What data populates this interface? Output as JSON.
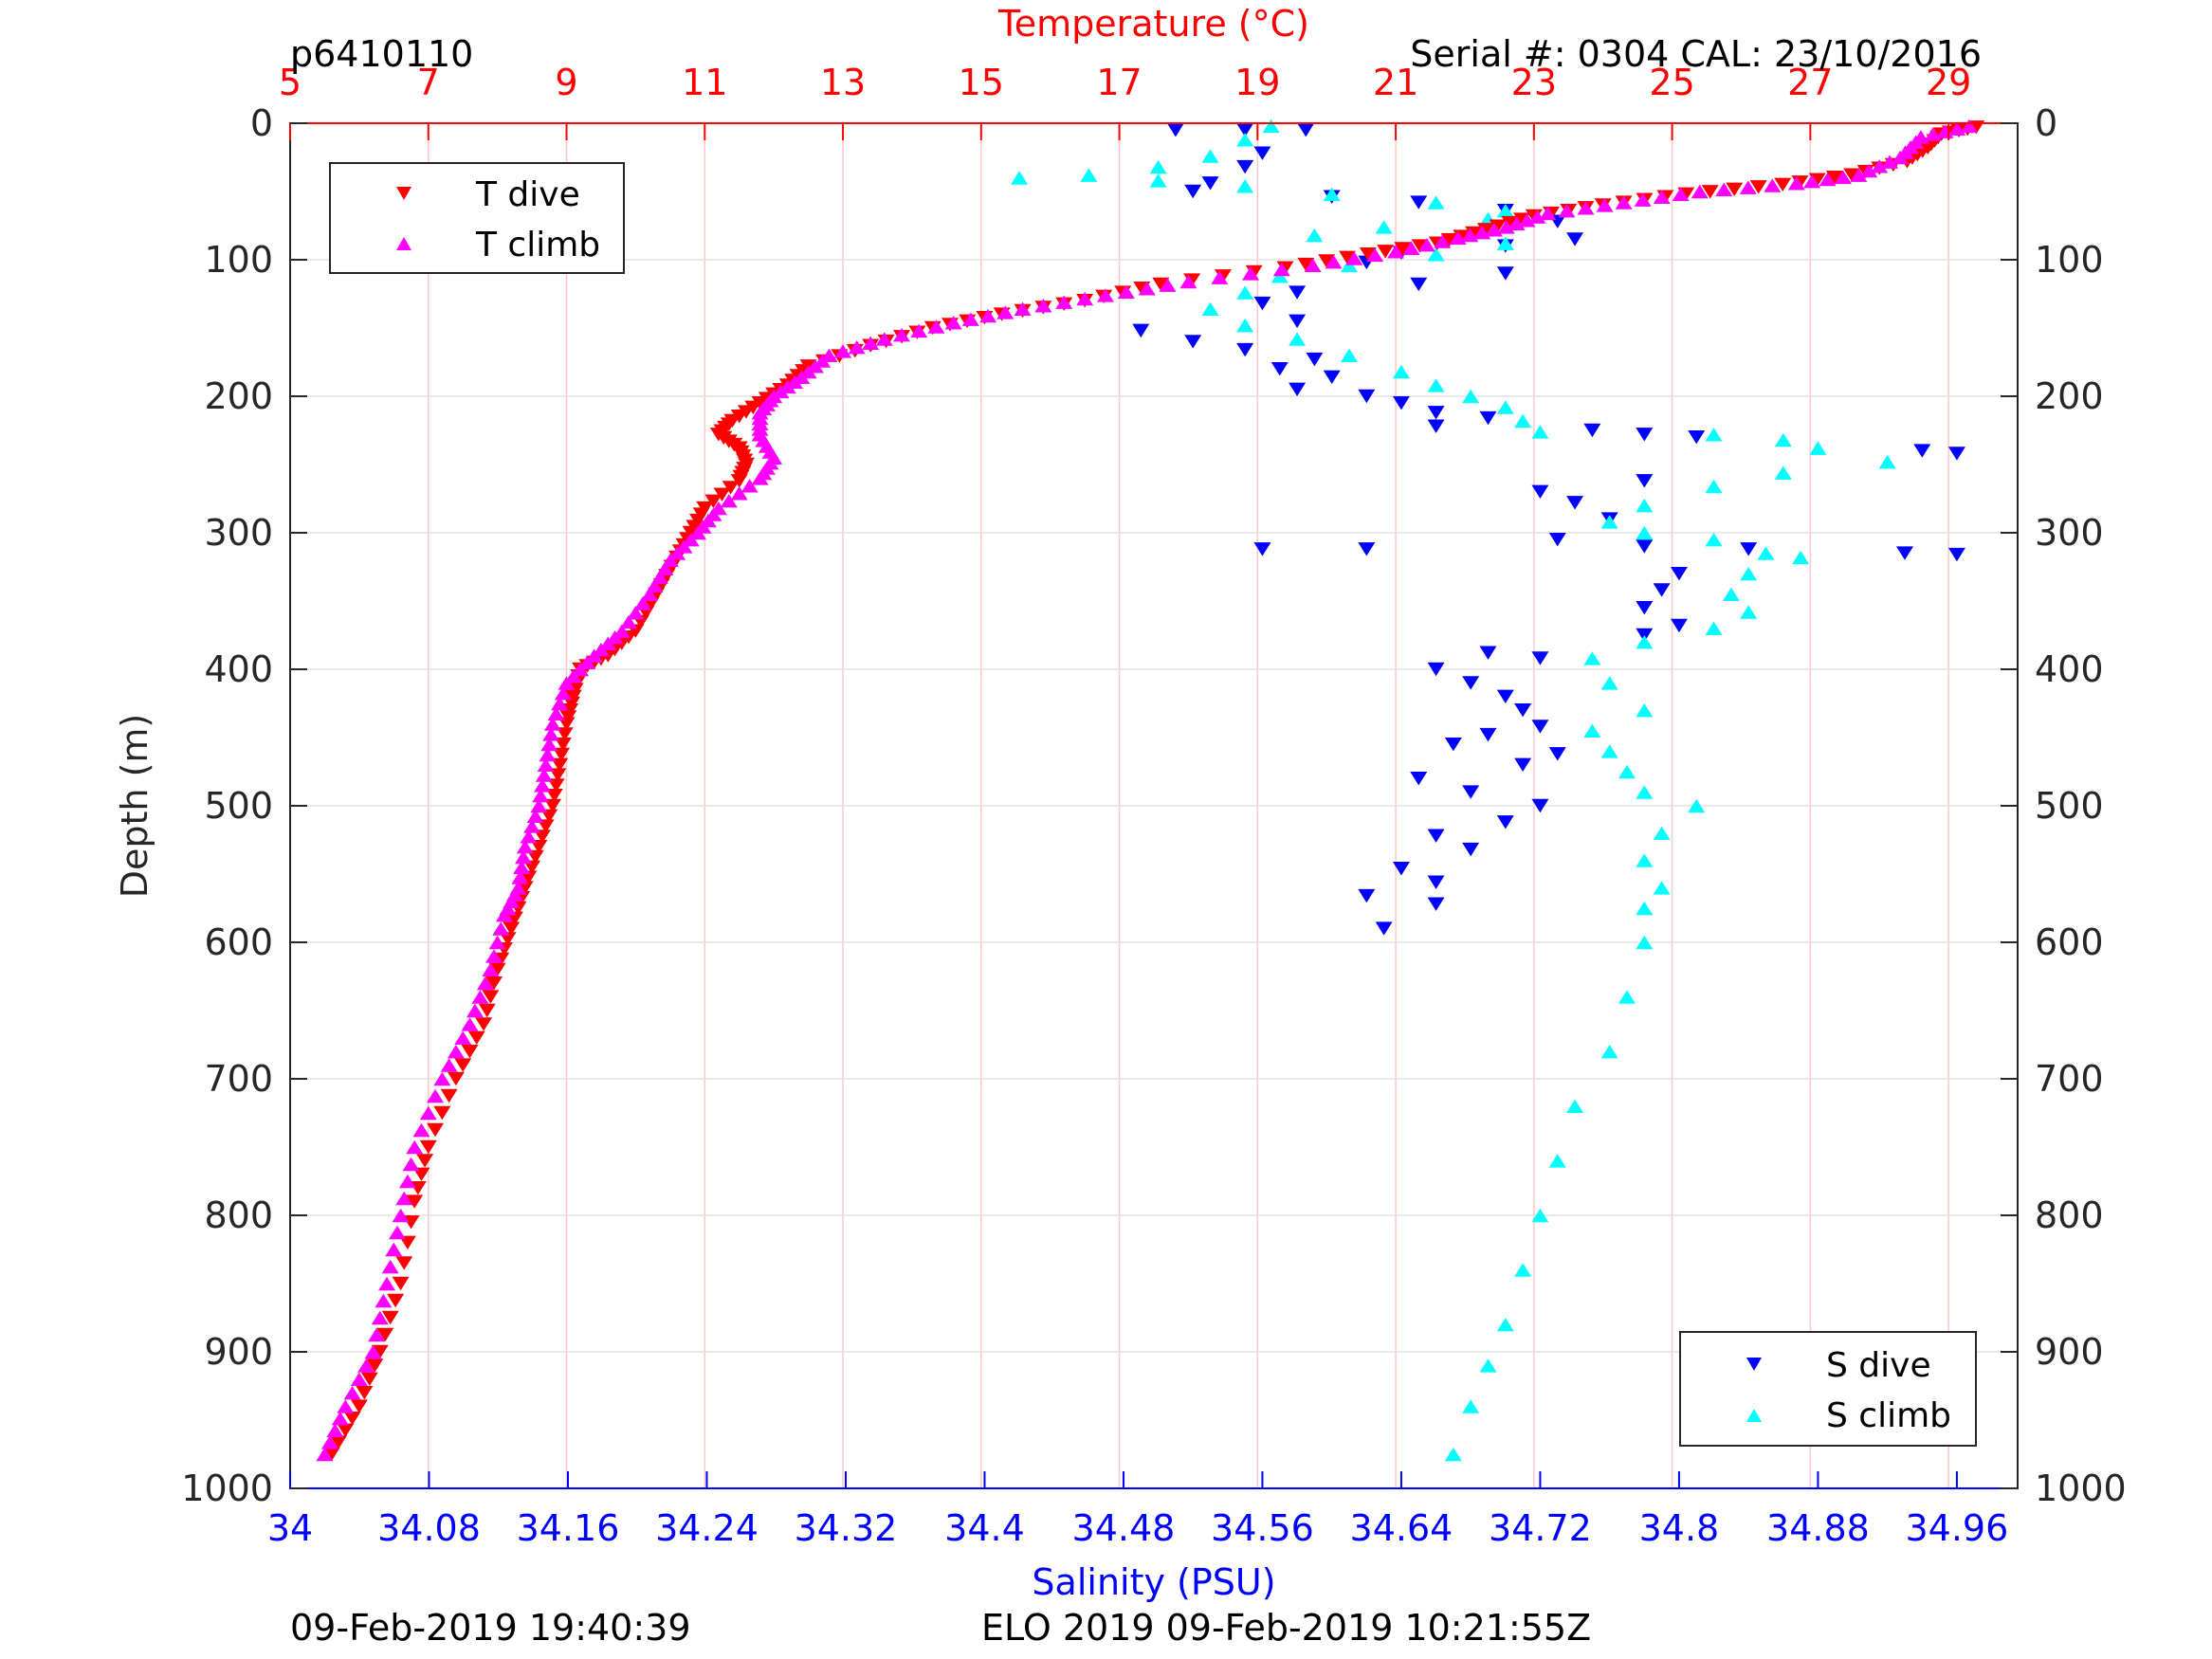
{
  "header": {
    "id_label": "p6410110",
    "serial_label": "Serial #: 0304  CAL: 23/10/2016"
  },
  "footer": {
    "left_label": "09-Feb-2019 19:40:39",
    "center_label": "ELO 2019 09-Feb-2019 10:21:55Z"
  },
  "colors": {
    "temperature_axis": "#ff0000",
    "salinity_axis": "#0000ff",
    "t_dive": "#ff0000",
    "t_climb": "#ff00ff",
    "s_dive": "#0000ff",
    "s_climb": "#00ffff"
  },
  "chart_data": {
    "type": "scatter",
    "x_top_label": "Temperature (°C)",
    "x_bottom_label": "Salinity (PSU)",
    "y_label": "Depth (m)",
    "temperature_range": [
      5,
      30
    ],
    "temperature_ticks": [
      "5",
      "7",
      "9",
      "11",
      "13",
      "15",
      "17",
      "19",
      "21",
      "23",
      "25",
      "27",
      "29"
    ],
    "salinity_range": [
      34,
      34.995
    ],
    "salinity_ticks": [
      "34",
      "34.08",
      "34.16",
      "34.24",
      "34.32",
      "34.4",
      "34.48",
      "34.56",
      "34.64",
      "34.72",
      "34.8",
      "34.88",
      "34.96"
    ],
    "depth_range": [
      0,
      1000
    ],
    "depth_ticks": [
      "0",
      "100",
      "200",
      "300",
      "400",
      "500",
      "600",
      "700",
      "800",
      "900",
      "1000"
    ],
    "y_reversed": true,
    "grid": true,
    "legends": [
      {
        "placement": "top-left",
        "entries": [
          "T dive",
          "T climb"
        ]
      },
      {
        "placement": "bottom-right",
        "entries": [
          "S dive",
          "S climb"
        ]
      }
    ],
    "series": [
      {
        "name": "T dive",
        "axis": "temperature",
        "marker": "triangle-down",
        "points": [
          [
            29.4,
            3
          ],
          [
            28.9,
            8
          ],
          [
            28.7,
            18
          ],
          [
            28.4,
            28
          ],
          [
            27.6,
            38
          ],
          [
            26.6,
            45
          ],
          [
            25.2,
            52
          ],
          [
            24.0,
            60
          ],
          [
            23.0,
            68
          ],
          [
            22.3,
            78
          ],
          [
            21.6,
            88
          ],
          [
            20.6,
            96
          ],
          [
            19.4,
            106
          ],
          [
            17.6,
            118
          ],
          [
            16.5,
            130
          ],
          [
            15.3,
            140
          ],
          [
            14.3,
            150
          ],
          [
            13.4,
            163
          ],
          [
            12.5,
            178
          ],
          [
            12.2,
            192
          ],
          [
            11.8,
            205
          ],
          [
            11.4,
            218
          ],
          [
            11.2,
            228
          ],
          [
            11.5,
            238
          ],
          [
            11.6,
            250
          ],
          [
            11.5,
            262
          ],
          [
            11.0,
            282
          ],
          [
            10.8,
            300
          ],
          [
            10.6,
            318
          ],
          [
            10.3,
            345
          ],
          [
            10.0,
            372
          ],
          [
            9.6,
            390
          ],
          [
            9.2,
            400
          ],
          [
            9.1,
            420
          ],
          [
            9.0,
            440
          ],
          [
            8.9,
            470
          ],
          [
            8.8,
            500
          ],
          [
            8.6,
            530
          ],
          [
            8.4,
            560
          ],
          [
            8.2,
            590
          ],
          [
            8.0,
            620
          ],
          [
            7.8,
            660
          ],
          [
            7.4,
            700
          ],
          [
            7.0,
            750
          ],
          [
            6.8,
            790
          ],
          [
            6.6,
            850
          ],
          [
            6.3,
            900
          ],
          [
            6.0,
            940
          ],
          [
            5.6,
            975
          ]
        ]
      },
      {
        "name": "T climb",
        "axis": "temperature",
        "marker": "triangle-up",
        "points": [
          [
            29.3,
            2
          ],
          [
            28.6,
            10
          ],
          [
            28.3,
            25
          ],
          [
            27.7,
            38
          ],
          [
            26.8,
            44
          ],
          [
            25.4,
            50
          ],
          [
            24.3,
            58
          ],
          [
            23.2,
            66
          ],
          [
            22.6,
            76
          ],
          [
            21.9,
            84
          ],
          [
            21.0,
            94
          ],
          [
            19.8,
            104
          ],
          [
            18.0,
            116
          ],
          [
            16.8,
            126
          ],
          [
            15.6,
            136
          ],
          [
            14.6,
            146
          ],
          [
            13.6,
            158
          ],
          [
            12.8,
            170
          ],
          [
            12.4,
            186
          ],
          [
            12.0,
            200
          ],
          [
            11.8,
            212
          ],
          [
            11.8,
            228
          ],
          [
            12.0,
            245
          ],
          [
            11.8,
            260
          ],
          [
            11.2,
            282
          ],
          [
            10.9,
            300
          ],
          [
            10.5,
            320
          ],
          [
            10.2,
            345
          ],
          [
            9.8,
            372
          ],
          [
            9.4,
            390
          ],
          [
            9.0,
            410
          ],
          [
            8.8,
            440
          ],
          [
            8.7,
            470
          ],
          [
            8.6,
            500
          ],
          [
            8.4,
            530
          ],
          [
            8.3,
            560
          ],
          [
            8.1,
            580
          ],
          [
            7.9,
            620
          ],
          [
            7.6,
            660
          ],
          [
            7.2,
            700
          ],
          [
            6.8,
            750
          ],
          [
            6.6,
            800
          ],
          [
            6.4,
            850
          ],
          [
            6.2,
            900
          ],
          [
            5.8,
            940
          ],
          [
            5.5,
            975
          ]
        ]
      },
      {
        "name": "S dive",
        "axis": "salinity",
        "marker": "triangle-down",
        "points": [
          [
            34.51,
            5
          ],
          [
            34.55,
            5
          ],
          [
            34.585,
            5
          ],
          [
            34.56,
            22
          ],
          [
            34.55,
            32
          ],
          [
            34.53,
            44
          ],
          [
            34.52,
            50
          ],
          [
            34.6,
            54
          ],
          [
            34.65,
            58
          ],
          [
            34.7,
            64
          ],
          [
            34.73,
            72
          ],
          [
            34.74,
            85
          ],
          [
            34.7,
            90
          ],
          [
            34.64,
            95
          ],
          [
            34.62,
            102
          ],
          [
            34.7,
            110
          ],
          [
            34.65,
            118
          ],
          [
            34.58,
            124
          ],
          [
            34.56,
            132
          ],
          [
            34.58,
            145
          ],
          [
            34.49,
            152
          ],
          [
            34.52,
            160
          ],
          [
            34.55,
            166
          ],
          [
            34.59,
            173
          ],
          [
            34.57,
            180
          ],
          [
            34.6,
            186
          ],
          [
            34.58,
            195
          ],
          [
            34.62,
            200
          ],
          [
            34.64,
            205
          ],
          [
            34.66,
            212
          ],
          [
            34.69,
            216
          ],
          [
            34.66,
            222
          ],
          [
            34.75,
            225
          ],
          [
            34.78,
            228
          ],
          [
            34.81,
            230
          ],
          [
            34.94,
            240
          ],
          [
            34.96,
            242
          ],
          [
            34.78,
            262
          ],
          [
            34.72,
            270
          ],
          [
            34.74,
            278
          ],
          [
            34.76,
            290
          ],
          [
            34.73,
            305
          ],
          [
            34.56,
            312
          ],
          [
            34.62,
            312
          ],
          [
            34.78,
            310
          ],
          [
            34.84,
            312
          ],
          [
            34.93,
            315
          ],
          [
            34.96,
            316
          ],
          [
            34.8,
            330
          ],
          [
            34.79,
            342
          ],
          [
            34.78,
            355
          ],
          [
            34.8,
            368
          ],
          [
            34.78,
            375
          ],
          [
            34.69,
            388
          ],
          [
            34.72,
            392
          ],
          [
            34.66,
            400
          ],
          [
            34.68,
            410
          ],
          [
            34.7,
            420
          ],
          [
            34.71,
            430
          ],
          [
            34.72,
            442
          ],
          [
            34.69,
            448
          ],
          [
            34.67,
            455
          ],
          [
            34.73,
            462
          ],
          [
            34.71,
            470
          ],
          [
            34.65,
            480
          ],
          [
            34.68,
            490
          ],
          [
            34.72,
            500
          ],
          [
            34.7,
            512
          ],
          [
            34.66,
            522
          ],
          [
            34.68,
            532
          ],
          [
            34.64,
            546
          ],
          [
            34.66,
            556
          ],
          [
            34.62,
            566
          ],
          [
            34.66,
            572
          ],
          [
            34.63,
            590
          ]
        ]
      },
      {
        "name": "S climb",
        "axis": "salinity",
        "marker": "triangle-up",
        "points": [
          [
            34.565,
            2
          ],
          [
            34.55,
            12
          ],
          [
            34.53,
            24
          ],
          [
            34.5,
            32
          ],
          [
            34.46,
            38
          ],
          [
            34.42,
            40
          ],
          [
            34.5,
            42
          ],
          [
            34.55,
            46
          ],
          [
            34.6,
            52
          ],
          [
            34.66,
            58
          ],
          [
            34.7,
            64
          ],
          [
            34.69,
            70
          ],
          [
            34.63,
            76
          ],
          [
            34.59,
            82
          ],
          [
            34.7,
            88
          ],
          [
            34.66,
            96
          ],
          [
            34.61,
            104
          ],
          [
            34.57,
            112
          ],
          [
            34.55,
            124
          ],
          [
            34.53,
            136
          ],
          [
            34.55,
            148
          ],
          [
            34.58,
            158
          ],
          [
            34.61,
            170
          ],
          [
            34.64,
            182
          ],
          [
            34.66,
            192
          ],
          [
            34.68,
            200
          ],
          [
            34.7,
            208
          ],
          [
            34.71,
            218
          ],
          [
            34.72,
            226
          ],
          [
            34.82,
            228
          ],
          [
            34.86,
            232
          ],
          [
            34.88,
            238
          ],
          [
            34.92,
            248
          ],
          [
            34.86,
            256
          ],
          [
            34.82,
            266
          ],
          [
            34.78,
            280
          ],
          [
            34.76,
            292
          ],
          [
            34.78,
            300
          ],
          [
            34.82,
            305
          ],
          [
            34.85,
            315
          ],
          [
            34.87,
            318
          ],
          [
            34.84,
            330
          ],
          [
            34.83,
            345
          ],
          [
            34.84,
            358
          ],
          [
            34.82,
            370
          ],
          [
            34.78,
            380
          ],
          [
            34.75,
            392
          ],
          [
            34.76,
            410
          ],
          [
            34.78,
            430
          ],
          [
            34.75,
            445
          ],
          [
            34.76,
            460
          ],
          [
            34.77,
            475
          ],
          [
            34.78,
            490
          ],
          [
            34.81,
            500
          ],
          [
            34.79,
            520
          ],
          [
            34.78,
            540
          ],
          [
            34.79,
            560
          ],
          [
            34.78,
            575
          ],
          [
            34.78,
            600
          ],
          [
            34.77,
            640
          ],
          [
            34.76,
            680
          ],
          [
            34.74,
            720
          ],
          [
            34.73,
            760
          ],
          [
            34.72,
            800
          ],
          [
            34.71,
            840
          ],
          [
            34.7,
            880
          ],
          [
            34.69,
            910
          ],
          [
            34.68,
            940
          ],
          [
            34.67,
            975
          ]
        ]
      }
    ]
  }
}
